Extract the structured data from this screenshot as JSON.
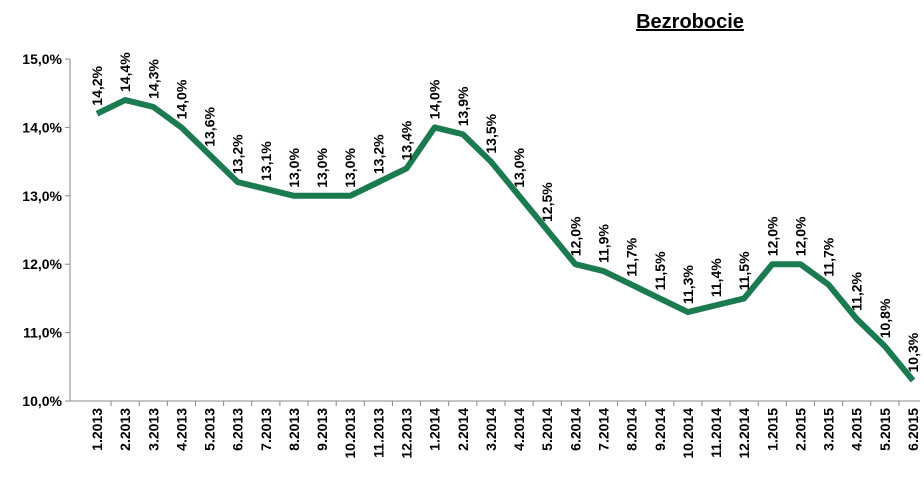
{
  "chart_data": {
    "type": "line",
    "title": "Bezrobocie",
    "categories": [
      "1.2013",
      "2.2013",
      "3.2013",
      "4.2013",
      "5.2013",
      "6.2013",
      "7.2013",
      "8.2013",
      "9.2013",
      "10.2013",
      "11.2013",
      "12.2013",
      "1.2014",
      "2.2014",
      "3.2014",
      "4.2014",
      "5.2014",
      "6.2014",
      "7.2014",
      "8.2014",
      "9.2014",
      "10.2014",
      "11.2014",
      "12.2014",
      "1.2015",
      "2.2015",
      "3.2015",
      "4.2015",
      "5.2015",
      "6.2015"
    ],
    "series": [
      {
        "name": "Bezrobocie",
        "color": "#1b7a50",
        "values": [
          14.2,
          14.4,
          14.3,
          14.0,
          13.6,
          13.2,
          13.1,
          13.0,
          13.0,
          13.0,
          13.2,
          13.4,
          14.0,
          13.9,
          13.5,
          13.0,
          12.5,
          12.0,
          11.9,
          11.7,
          11.5,
          11.3,
          11.4,
          11.5,
          12.0,
          12.0,
          11.7,
          11.2,
          10.8,
          10.3
        ],
        "value_labels": [
          "14,2%",
          "14,4%",
          "14,3%",
          "14,0%",
          "13,6%",
          "13,2%",
          "13,1%",
          "13,0%",
          "13,0%",
          "13,0%",
          "13,2%",
          "13,4%",
          "14,0%",
          "13,9%",
          "13,5%",
          "13,0%",
          "12,5%",
          "12,0%",
          "11,9%",
          "11,7%",
          "11,5%",
          "11,3%",
          "11,4%",
          "11,5%",
          "12,0%",
          "12,0%",
          "11,7%",
          "11,2%",
          "10,8%",
          "10,3%"
        ]
      }
    ],
    "ylim": [
      10,
      15
    ],
    "yticks": [
      {
        "value": 10,
        "label": "10,0%"
      },
      {
        "value": 11,
        "label": "11,0%"
      },
      {
        "value": 12,
        "label": "12,0%"
      },
      {
        "value": 13,
        "label": "13,0%"
      },
      {
        "value": 14,
        "label": "14,0%"
      },
      {
        "value": 15,
        "label": "15,0%"
      }
    ]
  }
}
